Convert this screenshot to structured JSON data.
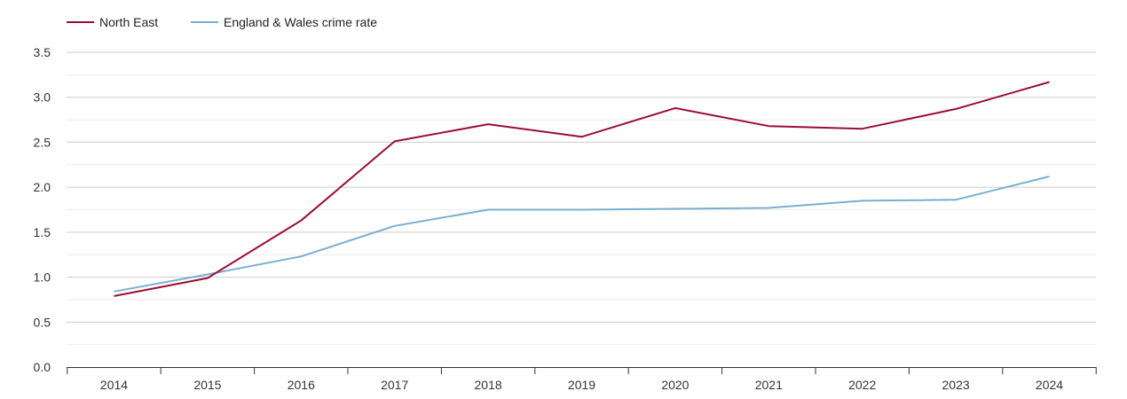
{
  "chart_data": {
    "type": "line",
    "title": "",
    "xlabel": "",
    "ylabel": "",
    "categories": [
      "2014",
      "2015",
      "2016",
      "2017",
      "2018",
      "2019",
      "2020",
      "2021",
      "2022",
      "2023",
      "2024"
    ],
    "yticks": [
      "0.0",
      "0.5",
      "1.0",
      "1.5",
      "2.0",
      "2.5",
      "3.0",
      "3.5"
    ],
    "ylim": [
      0,
      3.5
    ],
    "grid": true,
    "legend_position": "top-left",
    "series": [
      {
        "name": "North East",
        "color": "#9b0d33",
        "values": [
          0.79,
          0.99,
          1.63,
          2.51,
          2.7,
          2.56,
          2.88,
          2.68,
          2.65,
          2.87,
          3.17
        ]
      },
      {
        "name": "England & Wales crime rate",
        "color": "#7aafd1",
        "values": [
          0.84,
          1.03,
          1.23,
          1.57,
          1.75,
          1.75,
          1.76,
          1.77,
          1.85,
          1.86,
          2.12
        ]
      }
    ]
  }
}
